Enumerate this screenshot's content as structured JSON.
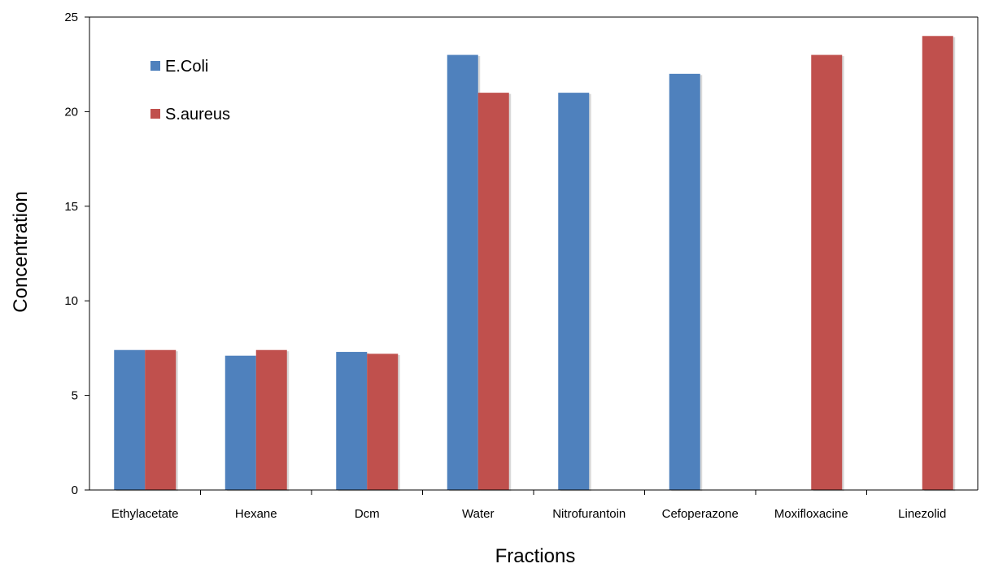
{
  "chart_data": {
    "type": "bar",
    "title": "",
    "xlabel": "Fractions",
    "ylabel": "Concentration",
    "ylim": [
      0,
      25
    ],
    "yticks": [
      0,
      5,
      10,
      15,
      20,
      25
    ],
    "grid": false,
    "legend_position": "top-left",
    "categories": [
      "Ethylacetate",
      "Hexane",
      "Dcm",
      "Water",
      "Nitrofurantoin",
      "Cefoperazone",
      "Moxifloxacine",
      "Linezolid"
    ],
    "series": [
      {
        "name": "E.Coli",
        "color": "#4F81BD",
        "values": [
          7.4,
          7.1,
          7.3,
          23,
          21,
          22,
          0,
          0
        ]
      },
      {
        "name": "S.aureus",
        "color": "#C0504D",
        "values": [
          7.4,
          7.4,
          7.2,
          21,
          0,
          0,
          23,
          24
        ]
      }
    ]
  }
}
